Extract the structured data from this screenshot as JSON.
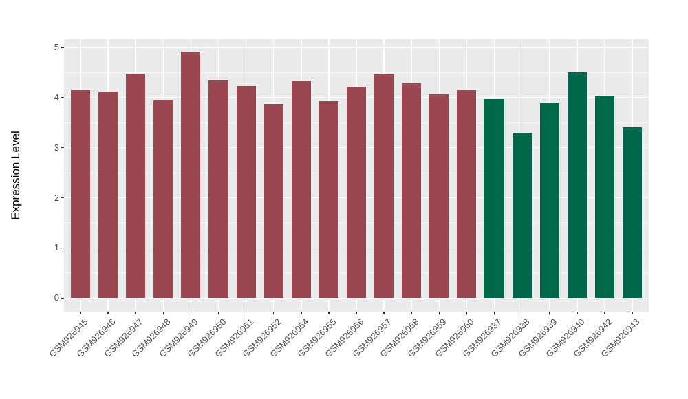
{
  "chart_data": {
    "type": "bar",
    "title": "",
    "xlabel": "",
    "ylabel": "Expression Level",
    "yticks": [
      0,
      1,
      2,
      3,
      4,
      5
    ],
    "ylim": [
      0,
      5.16
    ],
    "grid": "on",
    "legend": "none",
    "panel_background": "#EBEBEB",
    "gridline_color": "#FFFFFF",
    "tick_color": "#333333",
    "tick_label_color": "#4D4D4D",
    "axis_title_color": "#000000",
    "group_colors": {
      "group1": "#9B4751",
      "group2": "#00684A"
    },
    "bars": [
      {
        "label": "GSM926945",
        "value": 4.15,
        "group": "group1"
      },
      {
        "label": "GSM926946",
        "value": 4.11,
        "group": "group1"
      },
      {
        "label": "GSM926947",
        "value": 4.48,
        "group": "group1"
      },
      {
        "label": "GSM926948",
        "value": 3.94,
        "group": "group1"
      },
      {
        "label": "GSM926949",
        "value": 4.91,
        "group": "group1"
      },
      {
        "label": "GSM926950",
        "value": 4.34,
        "group": "group1"
      },
      {
        "label": "GSM926951",
        "value": 4.23,
        "group": "group1"
      },
      {
        "label": "GSM926952",
        "value": 3.87,
        "group": "group1"
      },
      {
        "label": "GSM926954",
        "value": 4.32,
        "group": "group1"
      },
      {
        "label": "GSM926955",
        "value": 3.93,
        "group": "group1"
      },
      {
        "label": "GSM926956",
        "value": 4.22,
        "group": "group1"
      },
      {
        "label": "GSM926957",
        "value": 4.46,
        "group": "group1"
      },
      {
        "label": "GSM926958",
        "value": 4.29,
        "group": "group1"
      },
      {
        "label": "GSM926959",
        "value": 4.06,
        "group": "group1"
      },
      {
        "label": "GSM926960",
        "value": 4.15,
        "group": "group1"
      },
      {
        "label": "GSM926937",
        "value": 3.97,
        "group": "group2"
      },
      {
        "label": "GSM926938",
        "value": 3.3,
        "group": "group2"
      },
      {
        "label": "GSM926939",
        "value": 3.88,
        "group": "group2"
      },
      {
        "label": "GSM926940",
        "value": 4.51,
        "group": "group2"
      },
      {
        "label": "GSM926942",
        "value": 4.04,
        "group": "group2"
      },
      {
        "label": "GSM926943",
        "value": 3.41,
        "group": "group2"
      }
    ]
  }
}
